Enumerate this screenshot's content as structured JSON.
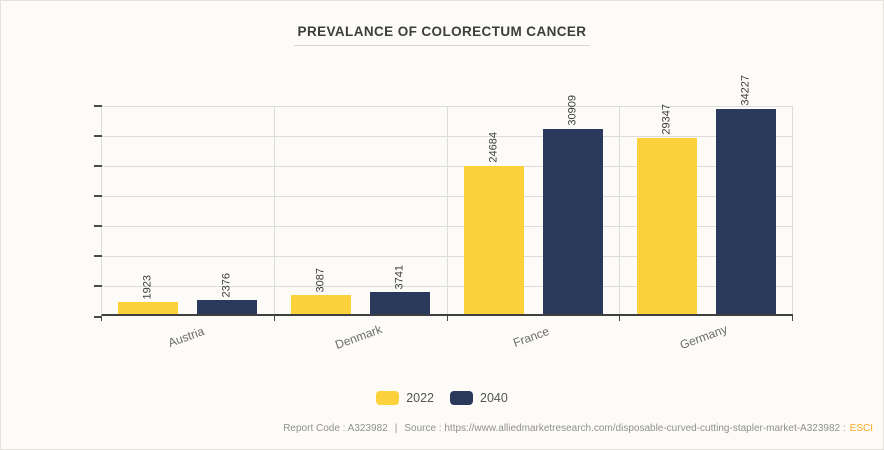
{
  "title": "PREVALANCE OF COLORECTUM CANCER",
  "chart_data": {
    "type": "bar",
    "title": "PREVALANCE OF COLORECTUM CANCER",
    "categories": [
      "Austria",
      "Denmark",
      "France",
      "Germany"
    ],
    "series": [
      {
        "name": "2022",
        "color": "#fcd13b",
        "values": [
          1923,
          3087,
          24684,
          29347
        ]
      },
      {
        "name": "2040",
        "color": "#2b3a5c",
        "values": [
          2376,
          3741,
          30909,
          34227
        ]
      }
    ],
    "xlabel": "",
    "ylabel": "",
    "ylim": [
      0,
      35000
    ],
    "grid_step": 5000,
    "grid": true,
    "y_tick_labels_visible": false,
    "value_labels_rotation": -90,
    "legend_position": "bottom"
  },
  "colors": {
    "background": "#fdfbf7",
    "gridline": "#dcdcdc",
    "axis": "#3f3f3f",
    "series_2022": "#fcd13b",
    "series_2040": "#2b3a5c",
    "brand_accent": "#f6a821"
  },
  "footer": {
    "report_code": "Report Code : A323982",
    "separator": "|",
    "source": "Source : https://www.alliedmarketresearch.com/disposable-curved-cutting-stapler-market-A323982 :",
    "brand": "ESCI",
    "brand_color": "#f6a821"
  }
}
